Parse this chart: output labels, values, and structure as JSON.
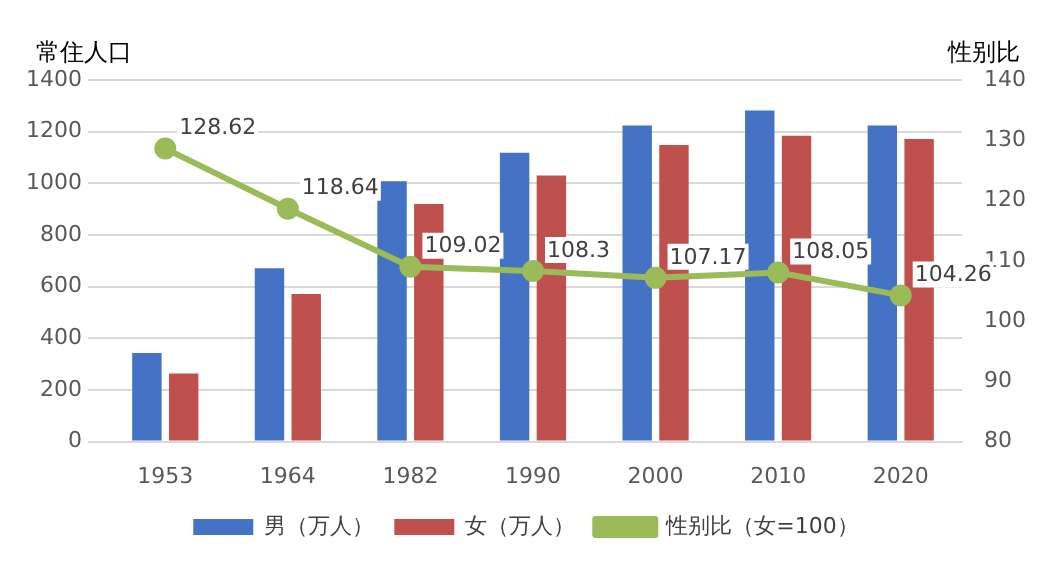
{
  "chart_data": {
    "type": "bar",
    "ylabel": "常住人口",
    "y2label": "性别比",
    "categories": [
      "1953",
      "1964",
      "1982",
      "1990",
      "2000",
      "2010",
      "2020"
    ],
    "series": [
      {
        "name": "男（万人）",
        "color": "#4472c4",
        "values": [
          343,
          671,
          1008,
          1118,
          1224,
          1282,
          1224
        ]
      },
      {
        "name": "女（万人）",
        "color": "#c0504d",
        "values": [
          264,
          571,
          920,
          1030,
          1148,
          1184,
          1172
        ]
      },
      {
        "name": "性别比（女=100）",
        "type": "line",
        "axis": "y2",
        "color": "#9bbb59",
        "marker": "circle",
        "values": [
          128.62,
          118.64,
          109.02,
          108.3,
          107.17,
          108.05,
          104.26
        ],
        "value_labels": [
          "128.62",
          "118.64",
          "109.02",
          "108.3",
          "107.17",
          "108.05",
          "104.26"
        ]
      }
    ],
    "ylim": [
      0,
      1400
    ],
    "yticks": [
      0,
      200,
      400,
      600,
      800,
      1000,
      1200,
      1400
    ],
    "y2lim": [
      80,
      140
    ],
    "y2ticks": [
      80,
      90,
      100,
      110,
      120,
      130,
      140
    ],
    "grid": "y",
    "legend": "bottom"
  }
}
